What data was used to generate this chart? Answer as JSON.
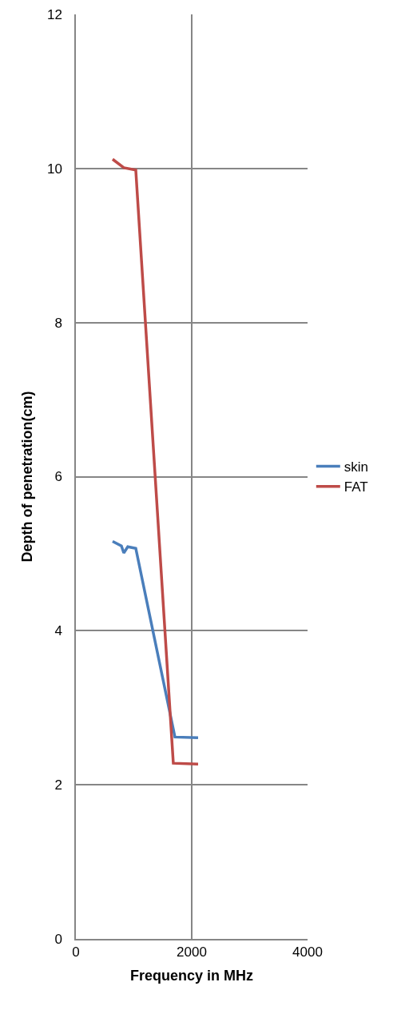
{
  "chart_data": {
    "type": "line",
    "xlabel": "Frequency in MHz",
    "ylabel": "Depth of penetration(cm)",
    "xlim": [
      0,
      4000
    ],
    "xticks": [
      0,
      2000,
      4000
    ],
    "ylim": [
      0,
      12
    ],
    "yticks": [
      0,
      2,
      4,
      6,
      8,
      10,
      12
    ],
    "grid": true,
    "legend": "right",
    "marker": "none",
    "line_style": "solid",
    "series": [
      {
        "name": "skin",
        "color": "#4a7ebb",
        "x": [
          634,
          786,
          827,
          896,
          1034,
          1710,
          2110
        ],
        "values": [
          5.16,
          5.1,
          5.01,
          5.09,
          5.07,
          2.62,
          2.61
        ]
      },
      {
        "name": "FAT",
        "color": "#be4b48",
        "x": [
          634,
          827,
          1034,
          1682,
          2110
        ],
        "values": [
          10.12,
          10.01,
          9.98,
          2.28,
          2.27
        ]
      }
    ]
  }
}
